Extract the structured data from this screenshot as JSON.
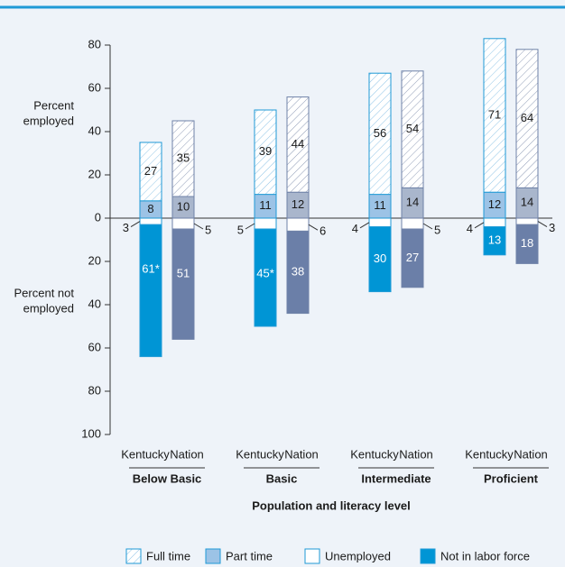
{
  "chart_data": {
    "type": "diverging_stacked_bar",
    "y_label_top": [
      "Percent",
      "employed"
    ],
    "y_label_bottom": [
      "Percent not",
      "employed"
    ],
    "x_label": "Population and literacy level",
    "groups": [
      "Below Basic",
      "Basic",
      "Intermediate",
      "Proficient"
    ],
    "categories": [
      "Kentucky",
      "Nation",
      "Kentucky",
      "Nation",
      "Kentucky",
      "Nation",
      "Kentucky",
      "Nation"
    ],
    "outline_colors": [
      "#1f9ad6",
      "#6f82a8"
    ],
    "series": [
      {
        "name": "Full time",
        "colors": [
          "#ffffff",
          "#ffffff"
        ],
        "hatch": true,
        "values": [
          27,
          35,
          39,
          44,
          56,
          54,
          71,
          64
        ]
      },
      {
        "name": "Part time",
        "colors": [
          "#9cc3e6",
          "#a9b6cc"
        ],
        "values": [
          8,
          10,
          11,
          12,
          11,
          14,
          12,
          14
        ]
      },
      {
        "name": "Unemployed",
        "colors": [
          "#ffffff",
          "#ffffff"
        ],
        "values": [
          -3,
          -5,
          -5,
          -6,
          -4,
          -5,
          -4,
          -3
        ],
        "value_labels": [
          "3",
          "5",
          "5",
          "6",
          "4",
          "5",
          "4",
          "3"
        ]
      },
      {
        "name": "Not in labor force",
        "colors": [
          "#0095d5",
          "#6b7fa8"
        ],
        "values": [
          -61,
          -51,
          -45,
          -38,
          -30,
          -27,
          -13,
          -18
        ],
        "value_labels": [
          "61*",
          "51",
          "45*",
          "38",
          "30",
          "27",
          "13",
          "18"
        ]
      }
    ],
    "ylim": [
      -100,
      80
    ],
    "yticks": [
      80,
      60,
      40,
      20,
      0,
      {
        "value": -20,
        "label": "20"
      },
      {
        "value": -40,
        "label": "40"
      },
      {
        "value": -60,
        "label": "60"
      },
      {
        "value": -80,
        "label": "80"
      },
      {
        "value": -100,
        "label": "100"
      }
    ]
  }
}
